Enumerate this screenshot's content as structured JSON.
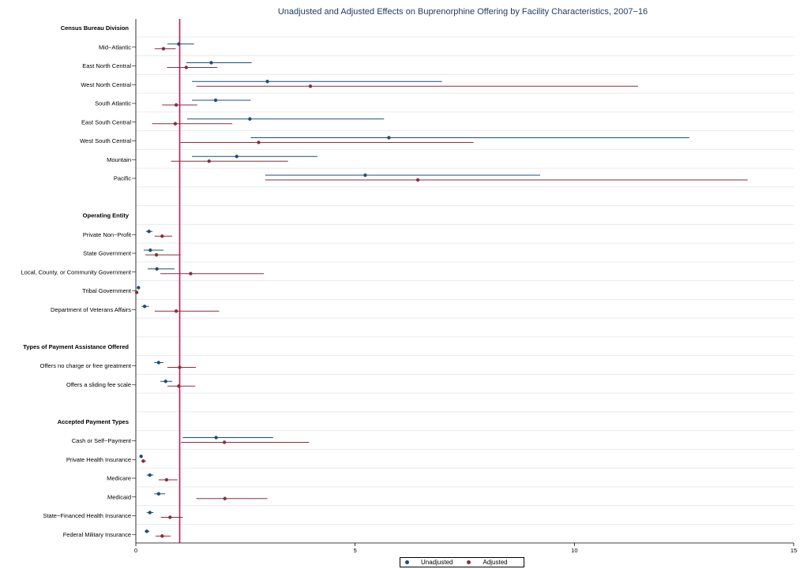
{
  "chart_data": {
    "type": "scatter",
    "title": "Unadjusted and Adjusted Effects on Buprenorphine Offering by Facility Characteristics, 2007−16",
    "xlabel": "",
    "ylabel": "",
    "xlim": [
      0,
      15
    ],
    "xticks": [
      "0",
      "5",
      "10",
      "15"
    ],
    "reference_line": 1,
    "grid": true,
    "legend_position": "bottom",
    "colors": {
      "unadjusted": "#1f4e79",
      "adjusted": "#8b2e3a",
      "reference": "#c2185b"
    },
    "rows": [
      {
        "label": "Census Bureau Division",
        "header": true
      },
      {
        "label": "Mid−Atlantic",
        "unadj": [
          0.98,
          0.72,
          1.33
        ],
        "adj": [
          0.63,
          0.43,
          0.91
        ]
      },
      {
        "label": "East North Central",
        "unadj": [
          1.72,
          1.15,
          2.64
        ],
        "adj": [
          1.15,
          0.71,
          1.86
        ]
      },
      {
        "label": "West North Central",
        "unadj": [
          3.0,
          1.28,
          6.98
        ],
        "adj": [
          3.98,
          1.38,
          11.45
        ]
      },
      {
        "label": "South Atlantic",
        "unadj": [
          1.82,
          1.28,
          2.62
        ],
        "adj": [
          0.92,
          0.6,
          1.4
        ]
      },
      {
        "label": "East South Central",
        "unadj": [
          2.6,
          1.17,
          5.66
        ],
        "adj": [
          0.9,
          0.37,
          2.2
        ]
      },
      {
        "label": "West South Central",
        "unadj": [
          5.77,
          2.62,
          12.62
        ],
        "adj": [
          2.8,
          1.02,
          7.7
        ]
      },
      {
        "label": "Mountain",
        "unadj": [
          2.3,
          1.28,
          4.14
        ],
        "adj": [
          1.67,
          0.8,
          3.47
        ]
      },
      {
        "label": "Pacific",
        "unadj": [
          5.23,
          2.95,
          9.22
        ],
        "adj": [
          6.43,
          2.95,
          13.95
        ]
      },
      {
        "label": "",
        "spacer": true
      },
      {
        "label": "Operating Entity",
        "header": true
      },
      {
        "label": "Private Non−Profit",
        "unadj": [
          0.3,
          0.23,
          0.38
        ],
        "adj": [
          0.6,
          0.43,
          0.83
        ]
      },
      {
        "label": "State Government",
        "unadj": [
          0.33,
          0.18,
          0.63
        ],
        "adj": [
          0.47,
          0.22,
          1.02
        ]
      },
      {
        "label": "Local, County, or Community Government",
        "unadj": [
          0.48,
          0.27,
          0.88
        ],
        "adj": [
          1.25,
          0.56,
          2.92
        ]
      },
      {
        "label": "Tribal Government",
        "unadj": [
          0.06,
          0.03,
          0.09
        ],
        "adj": [
          0.02,
          0.01,
          0.04
        ]
      },
      {
        "label": "Department of Veterans Affairs",
        "unadj": [
          0.2,
          0.13,
          0.3
        ],
        "adj": [
          0.92,
          0.43,
          1.9
        ]
      },
      {
        "label": "",
        "spacer": true
      },
      {
        "label": "Types of Payment Assistance Offered",
        "header": true
      },
      {
        "label": "Offers no charge or free greatment",
        "unadj": [
          0.52,
          0.42,
          0.63
        ],
        "adj": [
          1.0,
          0.72,
          1.37
        ]
      },
      {
        "label": "Offers a sliding fee scale",
        "unadj": [
          0.68,
          0.56,
          0.83
        ],
        "adj": [
          0.98,
          0.72,
          1.35
        ]
      },
      {
        "label": "",
        "spacer": true
      },
      {
        "label": "Accepted Payment Types",
        "header": true
      },
      {
        "label": "Cash or Self−Payment",
        "unadj": [
          1.83,
          1.07,
          3.13
        ],
        "adj": [
          2.02,
          1.03,
          3.95
        ]
      },
      {
        "label": "Private Health Insurance",
        "unadj": [
          0.12,
          0.09,
          0.15
        ],
        "adj": [
          0.17,
          0.12,
          0.23
        ]
      },
      {
        "label": "Medicare",
        "unadj": [
          0.32,
          0.25,
          0.4
        ],
        "adj": [
          0.7,
          0.52,
          0.95
        ]
      },
      {
        "label": "Medicaid",
        "unadj": [
          0.52,
          0.42,
          0.67
        ],
        "adj": [
          2.03,
          1.38,
          3.0
        ]
      },
      {
        "label": "State−Financed Health Insurance",
        "unadj": [
          0.32,
          0.25,
          0.4
        ],
        "adj": [
          0.78,
          0.57,
          1.07
        ]
      },
      {
        "label": "Federal Military Insurance",
        "unadj": [
          0.25,
          0.2,
          0.31
        ],
        "adj": [
          0.6,
          0.45,
          0.79
        ]
      }
    ],
    "series": [
      {
        "name": "Unadjusted"
      },
      {
        "name": "Adjusted"
      }
    ]
  }
}
